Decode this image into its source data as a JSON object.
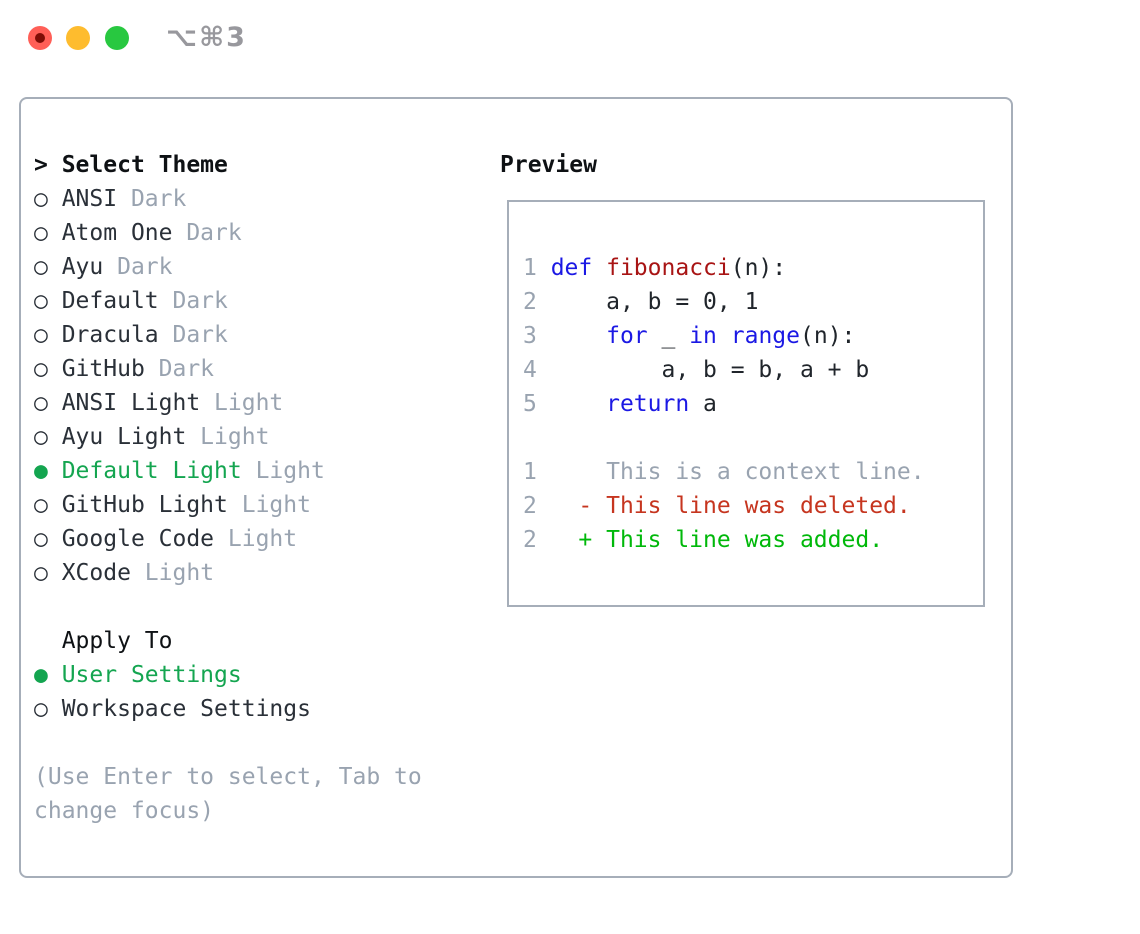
{
  "window": {
    "title": "⌥⌘3"
  },
  "theme_picker": {
    "header_prefix": "> ",
    "header": "Select Theme",
    "bullet_selected": "●",
    "bullet_unselected": "○",
    "items": [
      {
        "name": "ANSI",
        "variant": "Dark",
        "selected": false
      },
      {
        "name": "Atom One",
        "variant": "Dark",
        "selected": false
      },
      {
        "name": "Ayu",
        "variant": "Dark",
        "selected": false
      },
      {
        "name": "Default",
        "variant": "Dark",
        "selected": false
      },
      {
        "name": "Dracula",
        "variant": "Dark",
        "selected": false
      },
      {
        "name": "GitHub",
        "variant": "Dark",
        "selected": false
      },
      {
        "name": "ANSI Light",
        "variant": "Light",
        "selected": false
      },
      {
        "name": "Ayu Light",
        "variant": "Light",
        "selected": false
      },
      {
        "name": "Default Light",
        "variant": "Light",
        "selected": true
      },
      {
        "name": "GitHub Light",
        "variant": "Light",
        "selected": false
      },
      {
        "name": "Google Code",
        "variant": "Light",
        "selected": false
      },
      {
        "name": "XCode",
        "variant": "Light",
        "selected": false
      }
    ]
  },
  "apply_to": {
    "header": "Apply To",
    "options": [
      {
        "label": "User Settings",
        "selected": true
      },
      {
        "label": "Workspace Settings",
        "selected": false
      }
    ]
  },
  "hint": {
    "line1": "(Use Enter to select, Tab to",
    "line2": "change focus)"
  },
  "preview": {
    "header": "Preview",
    "code_lines": [
      {
        "num": "1",
        "tokens": [
          {
            "c": "kw",
            "t": "def"
          },
          {
            "c": "pl",
            "t": " "
          },
          {
            "c": "fn",
            "t": "fibonacci"
          },
          {
            "c": "pl",
            "t": "(n):"
          }
        ]
      },
      {
        "num": "2",
        "tokens": [
          {
            "c": "pl",
            "t": "    a, b = 0, 1"
          }
        ]
      },
      {
        "num": "3",
        "tokens": [
          {
            "c": "pl",
            "t": "    "
          },
          {
            "c": "kw",
            "t": "for"
          },
          {
            "c": "pl",
            "t": " _ "
          },
          {
            "c": "kw",
            "t": "in"
          },
          {
            "c": "pl",
            "t": " "
          },
          {
            "c": "kw",
            "t": "range"
          },
          {
            "c": "pl",
            "t": "(n):"
          }
        ]
      },
      {
        "num": "4",
        "tokens": [
          {
            "c": "pl",
            "t": "        a, b = b, a + b"
          }
        ]
      },
      {
        "num": "5",
        "tokens": [
          {
            "c": "pl",
            "t": "    "
          },
          {
            "c": "kw",
            "t": "return"
          },
          {
            "c": "pl",
            "t": " a"
          }
        ]
      }
    ],
    "diff_lines": [
      {
        "num": "1",
        "tokens": [
          {
            "c": "ctx",
            "t": "    This is a context line."
          }
        ]
      },
      {
        "num": "2",
        "tokens": [
          {
            "c": "del",
            "t": "  - This line was deleted."
          }
        ]
      },
      {
        "num": "2",
        "tokens": [
          {
            "c": "add",
            "t": "  + This line was added."
          }
        ]
      }
    ]
  },
  "colors": {
    "header_black": "#0E1114",
    "text_dark": "#2A3038",
    "muted_gray": "#99A3B0",
    "border_gray": "#A6AEB9",
    "sel_green": "#14A550",
    "add_green": "#00B80A",
    "del_red": "#C6351F",
    "fn_red": "#A81414",
    "kw_blue": "#1B18E4",
    "code_plain": "#20252B",
    "title_gray": "#98989D",
    "tl_red": "#FF5F57",
    "tl_red_dot": "#7E0D06",
    "tl_yellow": "#FEBC2E",
    "tl_green": "#28C840"
  }
}
